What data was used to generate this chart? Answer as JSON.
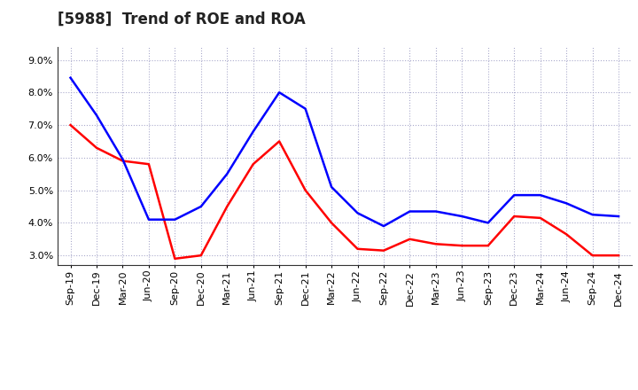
{
  "title": "[5988]  Trend of ROE and ROA",
  "labels": [
    "Sep-19",
    "Dec-19",
    "Mar-20",
    "Jun-20",
    "Sep-20",
    "Dec-20",
    "Mar-21",
    "Jun-21",
    "Sep-21",
    "Dec-21",
    "Mar-22",
    "Jun-22",
    "Sep-22",
    "Dec-22",
    "Mar-23",
    "Jun-23",
    "Sep-23",
    "Dec-23",
    "Mar-24",
    "Jun-24",
    "Sep-24",
    "Dec-24"
  ],
  "ROE": [
    7.0,
    6.3,
    5.9,
    5.8,
    2.9,
    3.0,
    4.5,
    5.8,
    6.5,
    5.0,
    4.0,
    3.2,
    3.15,
    3.5,
    3.35,
    3.3,
    3.3,
    4.2,
    4.15,
    3.65,
    3.0,
    3.0
  ],
  "ROA": [
    8.45,
    7.3,
    5.95,
    4.1,
    4.1,
    4.5,
    5.5,
    6.8,
    8.0,
    7.5,
    5.1,
    4.3,
    3.9,
    4.35,
    4.35,
    4.2,
    4.0,
    4.85,
    4.85,
    4.6,
    4.25,
    4.2
  ],
  "ROE_color": "#ff0000",
  "ROA_color": "#0000ff",
  "bg_color": "#ffffff",
  "plot_bg_color": "#ffffff",
  "grid_color": "#aaaacc",
  "ylim": [
    2.7,
    9.4
  ],
  "yticks": [
    3.0,
    4.0,
    5.0,
    6.0,
    7.0,
    8.0,
    9.0
  ],
  "title_fontsize": 12,
  "tick_fontsize": 8,
  "legend_fontsize": 9
}
